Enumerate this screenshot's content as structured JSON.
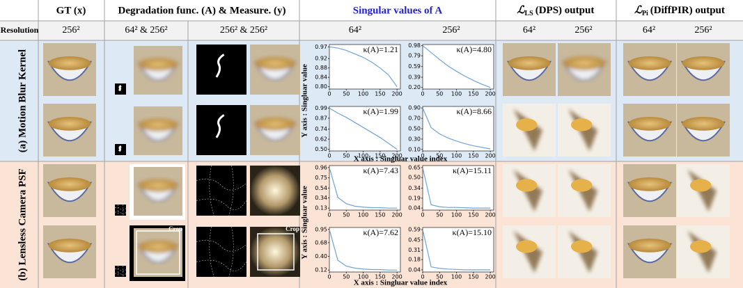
{
  "header": {
    "columns": [
      {
        "text": "GT (x)"
      },
      {
        "text": "Degradation func. (A) & Measure. (y)"
      },
      {
        "text": "Singular values of A"
      },
      {
        "symbol": "ℒ",
        "sub": "LS",
        "text": "(DPS) output"
      },
      {
        "symbol": "ℒ",
        "sub": "Pi",
        "text": "(DiffPIR) output"
      }
    ],
    "resolution": [
      "Resolution",
      "256²",
      "64² & 256²",
      "256² & 256²",
      "64²",
      "256²",
      "64²",
      "256²",
      "64²",
      "256²"
    ]
  },
  "rows": [
    {
      "label": "(a) Motion Blur Kernel"
    },
    {
      "label": "(b) Lensless Camera PSF"
    }
  ],
  "crop_labels": [
    "Crop",
    "Crop"
  ],
  "axis_labels": {
    "y": [
      "Y axis : Singluar value",
      "Y axis : Singluar value"
    ],
    "x": [
      "X axis : Singluar value index",
      "X axis : Singluar value index"
    ]
  },
  "chart_data": [
    {
      "type": "line",
      "kappa": "κ(A)=1.21",
      "color": "#6fa3d6",
      "x": [
        0,
        25,
        50,
        75,
        100,
        125,
        150,
        175,
        200
      ],
      "values": [
        0.97,
        0.965,
        0.955,
        0.94,
        0.925,
        0.905,
        0.88,
        0.85,
        0.8
      ],
      "xlim": [
        0,
        210
      ],
      "xticks": [
        0,
        50,
        100,
        150,
        200
      ],
      "ylim": [
        0.79,
        0.98
      ],
      "yticks": [
        0.97,
        0.92,
        0.88,
        0.84,
        {
          "value": 0.8,
          "label": "0.80"
        }
      ]
    },
    {
      "type": "line",
      "kappa": "κ(A)=4.80",
      "color": "#6fa3d6",
      "x": [
        0,
        25,
        50,
        75,
        100,
        125,
        150,
        175,
        200
      ],
      "values": [
        0.98,
        0.85,
        0.72,
        0.6,
        0.5,
        0.41,
        0.33,
        0.26,
        0.2
      ],
      "xlim": [
        0,
        210
      ],
      "xticks": [
        0,
        50,
        100,
        150,
        200
      ],
      "ylim": [
        0.17,
        1.0
      ],
      "yticks": [
        0.98,
        0.79,
        0.59,
        0.39,
        {
          "value": 0.2,
          "label": "0.20"
        }
      ]
    },
    {
      "type": "line",
      "kappa": "κ(A)=1.99",
      "color": "#6fa3d6",
      "x": [
        0,
        25,
        50,
        75,
        100,
        125,
        150,
        175,
        200
      ],
      "values": [
        0.99,
        0.93,
        0.88,
        0.82,
        0.76,
        0.7,
        0.64,
        0.57,
        0.5
      ],
      "xlim": [
        0,
        210
      ],
      "xticks": [
        0,
        50,
        100,
        150,
        200
      ],
      "ylim": [
        0.48,
        1.01
      ],
      "yticks": [
        0.99,
        0.87,
        0.74,
        0.62,
        {
          "value": 0.5,
          "label": "0.50"
        }
      ]
    },
    {
      "type": "line",
      "kappa": "κ(A)=8.66",
      "color": "#6fa3d6",
      "x": [
        0,
        25,
        50,
        75,
        100,
        125,
        150,
        175,
        200
      ],
      "values": [
        0.9,
        0.52,
        0.4,
        0.32,
        0.26,
        0.21,
        0.17,
        0.14,
        0.11
      ],
      "xlim": [
        0,
        210
      ],
      "xticks": [
        0,
        50,
        100,
        150,
        200
      ],
      "ylim": [
        0.07,
        0.93
      ],
      "yticks": [
        {
          "value": 0.9,
          "label": "0.90"
        },
        {
          "value": 0.7,
          "label": "0.70"
        },
        {
          "value": 0.5,
          "label": "0.50"
        },
        {
          "value": 0.3,
          "label": "0.30"
        },
        {
          "value": 0.1,
          "label": "0.10"
        }
      ]
    },
    {
      "type": "line",
      "kappa": "κ(A)=7.43",
      "color": "#6fa3d6",
      "x": [
        0,
        25,
        50,
        75,
        100,
        125,
        150,
        175,
        200
      ],
      "values": [
        0.96,
        0.35,
        0.22,
        0.17,
        0.15,
        0.14,
        0.14,
        0.13,
        0.13
      ],
      "xlim": [
        0,
        210
      ],
      "xticks": [
        0,
        50,
        100,
        150,
        200
      ],
      "ylim": [
        0.09,
        1.0
      ],
      "yticks": [
        0.96,
        0.75,
        0.54,
        0.34,
        0.13
      ]
    },
    {
      "type": "line",
      "kappa": "κ(A)=15.11",
      "color": "#6fa3d6",
      "x": [
        0,
        25,
        50,
        75,
        100,
        125,
        150,
        175,
        200
      ],
      "values": [
        0.65,
        0.09,
        0.06,
        0.05,
        0.05,
        0.045,
        0.04,
        0.04,
        0.04
      ],
      "xlim": [
        0,
        210
      ],
      "xticks": [
        0,
        50,
        100,
        150,
        200
      ],
      "ylim": [
        0.01,
        0.68
      ],
      "yticks": [
        0.65,
        {
          "value": 0.5,
          "label": "0.50"
        },
        0.34,
        0.19,
        0.04
      ]
    },
    {
      "type": "line",
      "kappa": "κ(A)=7.62",
      "color": "#6fa3d6",
      "x": [
        0,
        25,
        50,
        75,
        100,
        125,
        150,
        175,
        200
      ],
      "values": [
        0.95,
        0.32,
        0.2,
        0.16,
        0.14,
        0.13,
        0.13,
        0.12,
        0.12
      ],
      "xlim": [
        0,
        210
      ],
      "xticks": [
        0,
        50,
        100,
        150,
        200
      ],
      "ylim": [
        0.08,
        0.99
      ],
      "yticks": [
        0.95,
        0.68,
        {
          "value": 0.4,
          "label": "0.40"
        },
        0.12
      ]
    },
    {
      "type": "line",
      "kappa": "κ(A)=15.10",
      "color": "#6fa3d6",
      "x": [
        0,
        25,
        50,
        75,
        100,
        125,
        150,
        175,
        200
      ],
      "values": [
        0.59,
        0.08,
        0.06,
        0.05,
        0.045,
        0.04,
        0.04,
        0.04,
        0.04
      ],
      "xlim": [
        0,
        210
      ],
      "xticks": [
        0,
        50,
        100,
        150,
        200
      ],
      "ylim": [
        0.01,
        0.62
      ],
      "yticks": [
        0.59,
        0.45,
        0.31,
        0.18,
        0.04
      ]
    }
  ]
}
